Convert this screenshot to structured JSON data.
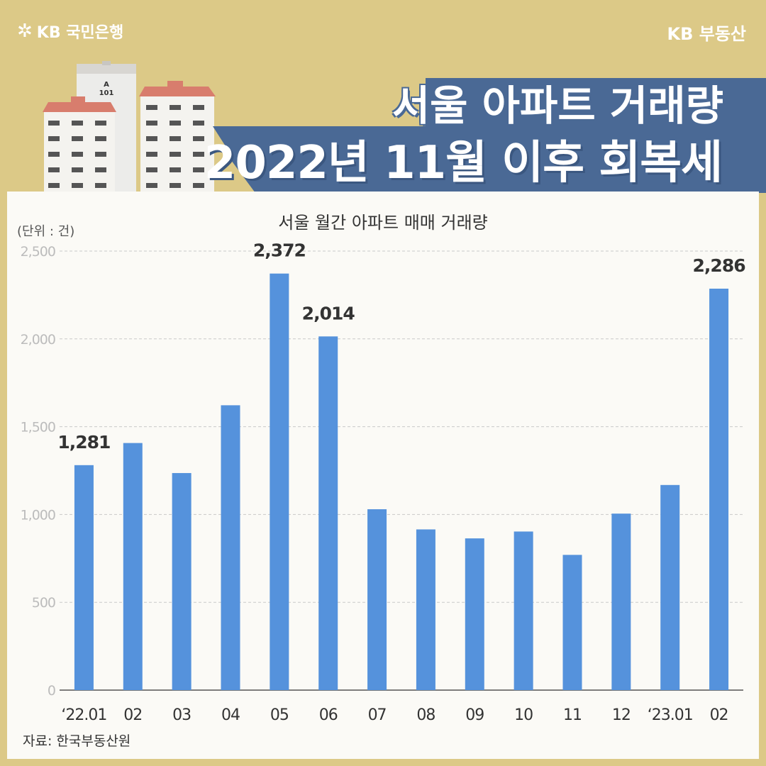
{
  "header": {
    "bank_logo_text": "KB 국민은행",
    "logo_star": "✲",
    "brand_right": "KB 부동산",
    "building_sign": [
      "A",
      "101"
    ]
  },
  "headline": {
    "line1": "서울 아파트 거래량",
    "line2": "2022년 11월 이후 회복세"
  },
  "colors": {
    "background": "#dcc987",
    "banner": "#4a6995",
    "bar": "#5592dc",
    "panel": "#fbfaf6"
  },
  "chart_data": {
    "type": "bar",
    "title": "서울 월간 아파트 매매 거래량",
    "unit_label": "(단위 : 건)",
    "categories": [
      "‘22.01",
      "02",
      "03",
      "04",
      "05",
      "06",
      "07",
      "08",
      "09",
      "10",
      "11",
      "12",
      "‘23.01",
      "02"
    ],
    "values": [
      1281,
      1407,
      1236,
      1622,
      2372,
      2014,
      1030,
      915,
      864,
      903,
      770,
      1005,
      1168,
      2286
    ],
    "data_labels": [
      {
        "index": 0,
        "text": "1,281"
      },
      {
        "index": 4,
        "text": "2,372"
      },
      {
        "index": 5,
        "text": "2,014"
      },
      {
        "index": 13,
        "text": "2,286"
      }
    ],
    "yticks": [
      {
        "value": 0,
        "label": "0"
      },
      {
        "value": 500,
        "label": "500"
      },
      {
        "value": 1000,
        "label": "1,000"
      },
      {
        "value": 1500,
        "label": "1,500"
      },
      {
        "value": 2000,
        "label": "2,000"
      },
      {
        "value": 2500,
        "label": "2,500"
      }
    ],
    "ylim": [
      0,
      2500
    ],
    "grid": true,
    "xlabel": "",
    "ylabel": ""
  },
  "source": "자료: 한국부동산원"
}
